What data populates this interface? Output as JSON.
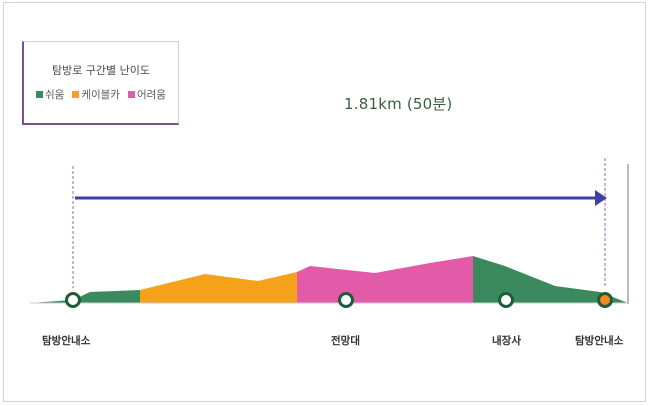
{
  "legend": {
    "title": "탐방로 구간별 난이도",
    "items": [
      {
        "label": "쉬움",
        "color": "#3b8a5e"
      },
      {
        "label": "케이블카",
        "color": "#f5a21a"
      },
      {
        "label": "어려움",
        "color": "#e25aa8"
      }
    ]
  },
  "route": {
    "summary": "1.81km (50분)"
  },
  "stops": [
    {
      "label": "탐방안내소",
      "marker": "start"
    },
    {
      "label": "전망대",
      "marker": "viewpoint"
    },
    {
      "label": "내장사",
      "marker": "temple"
    },
    {
      "label": "탐방안내소",
      "marker": "end"
    }
  ],
  "colors": {
    "arrow": "#3f3fa6",
    "marker_ring": "#1f5c3a",
    "end_marker_fill": "#f28a1e",
    "guide_line": "#8c6ba8"
  }
}
